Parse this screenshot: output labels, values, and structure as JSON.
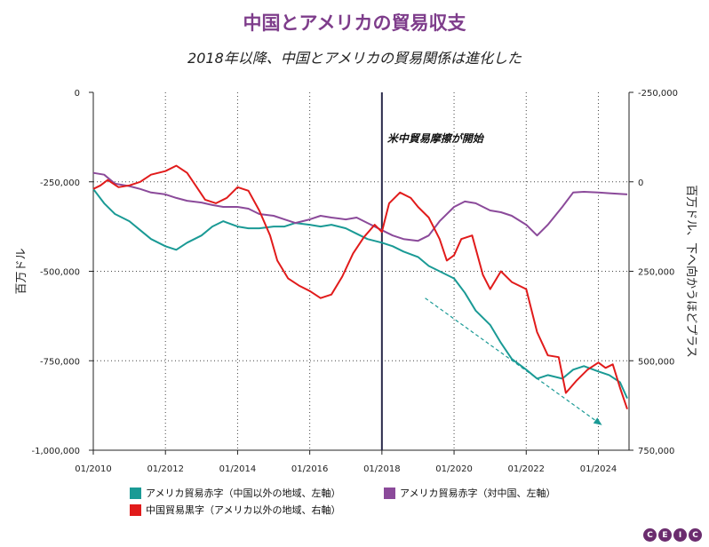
{
  "chart_data": {
    "type": "line",
    "title": "中国とアメリカの貿易収支",
    "subtitle": "2018年以降、中国とアメリカの貿易関係は進化した",
    "left_axis_label": "百万ドル",
    "right_axis_label": "百万ドル、下へ向かうほどプラス",
    "annotation": "米中貿易摩擦が開始",
    "event_date": "2018-01",
    "x_ticks": [
      "01/2010",
      "01/2012",
      "01/2014",
      "01/2016",
      "01/2018",
      "01/2020",
      "01/2022",
      "01/2024"
    ],
    "left_ticks": [
      "0",
      "-250,000",
      "-500,000",
      "-750,000",
      "-1,000,000"
    ],
    "right_ticks": [
      "-250,000",
      "0",
      "250,000",
      "500,000",
      "750,000"
    ],
    "left_range": [
      -1000000,
      0
    ],
    "right_range": [
      -250000,
      750000
    ],
    "right_axis_inverted": true,
    "series": [
      {
        "name": "アメリカ貿易赤字（中国以外の地域、左軸）",
        "color": "#1a9a95",
        "axis": "left",
        "points": [
          [
            2010.0,
            -270000
          ],
          [
            2010.3,
            -310000
          ],
          [
            2010.6,
            -340000
          ],
          [
            2011.0,
            -360000
          ],
          [
            2011.3,
            -385000
          ],
          [
            2011.6,
            -410000
          ],
          [
            2012.0,
            -430000
          ],
          [
            2012.3,
            -440000
          ],
          [
            2012.6,
            -420000
          ],
          [
            2013.0,
            -400000
          ],
          [
            2013.3,
            -375000
          ],
          [
            2013.6,
            -360000
          ],
          [
            2014.0,
            -375000
          ],
          [
            2014.3,
            -380000
          ],
          [
            2014.6,
            -380000
          ],
          [
            2015.0,
            -375000
          ],
          [
            2015.3,
            -375000
          ],
          [
            2015.6,
            -365000
          ],
          [
            2016.0,
            -370000
          ],
          [
            2016.3,
            -375000
          ],
          [
            2016.6,
            -370000
          ],
          [
            2017.0,
            -380000
          ],
          [
            2017.3,
            -395000
          ],
          [
            2017.6,
            -410000
          ],
          [
            2018.0,
            -420000
          ],
          [
            2018.3,
            -430000
          ],
          [
            2018.6,
            -445000
          ],
          [
            2019.0,
            -460000
          ],
          [
            2019.3,
            -485000
          ],
          [
            2019.6,
            -500000
          ],
          [
            2020.0,
            -520000
          ],
          [
            2020.3,
            -560000
          ],
          [
            2020.6,
            -610000
          ],
          [
            2021.0,
            -650000
          ],
          [
            2021.3,
            -700000
          ],
          [
            2021.6,
            -745000
          ],
          [
            2022.0,
            -775000
          ],
          [
            2022.3,
            -800000
          ],
          [
            2022.6,
            -790000
          ],
          [
            2023.0,
            -800000
          ],
          [
            2023.3,
            -775000
          ],
          [
            2023.6,
            -765000
          ],
          [
            2024.0,
            -780000
          ],
          [
            2024.3,
            -790000
          ],
          [
            2024.6,
            -810000
          ],
          [
            2024.8,
            -855000
          ]
        ]
      },
      {
        "name": "アメリカ貿易赤字（対中国、左軸）",
        "color": "#8b4a9a",
        "axis": "left",
        "points": [
          [
            2010.0,
            -225000
          ],
          [
            2010.3,
            -230000
          ],
          [
            2010.6,
            -255000
          ],
          [
            2011.0,
            -262000
          ],
          [
            2011.3,
            -270000
          ],
          [
            2011.6,
            -280000
          ],
          [
            2012.0,
            -285000
          ],
          [
            2012.3,
            -295000
          ],
          [
            2012.6,
            -303000
          ],
          [
            2013.0,
            -308000
          ],
          [
            2013.3,
            -315000
          ],
          [
            2013.6,
            -320000
          ],
          [
            2014.0,
            -320000
          ],
          [
            2014.3,
            -325000
          ],
          [
            2014.6,
            -340000
          ],
          [
            2015.0,
            -345000
          ],
          [
            2015.3,
            -355000
          ],
          [
            2015.6,
            -365000
          ],
          [
            2016.0,
            -355000
          ],
          [
            2016.3,
            -345000
          ],
          [
            2016.6,
            -350000
          ],
          [
            2017.0,
            -355000
          ],
          [
            2017.3,
            -350000
          ],
          [
            2017.6,
            -365000
          ],
          [
            2018.0,
            -385000
          ],
          [
            2018.3,
            -400000
          ],
          [
            2018.6,
            -410000
          ],
          [
            2019.0,
            -415000
          ],
          [
            2019.3,
            -400000
          ],
          [
            2019.6,
            -360000
          ],
          [
            2020.0,
            -320000
          ],
          [
            2020.3,
            -305000
          ],
          [
            2020.6,
            -310000
          ],
          [
            2021.0,
            -330000
          ],
          [
            2021.3,
            -335000
          ],
          [
            2021.6,
            -345000
          ],
          [
            2022.0,
            -370000
          ],
          [
            2022.3,
            -400000
          ],
          [
            2022.6,
            -370000
          ],
          [
            2023.0,
            -320000
          ],
          [
            2023.3,
            -280000
          ],
          [
            2023.6,
            -278000
          ],
          [
            2024.0,
            -280000
          ],
          [
            2024.3,
            -282000
          ],
          [
            2024.8,
            -285000
          ]
        ]
      },
      {
        "name": "中国貿易黒字（アメリカ以外の地域、右軸）",
        "color": "#e11b1b",
        "axis": "right",
        "points": [
          [
            2010.0,
            20000
          ],
          [
            2010.2,
            10000
          ],
          [
            2010.4,
            -5000
          ],
          [
            2010.7,
            15000
          ],
          [
            2011.0,
            10000
          ],
          [
            2011.3,
            0
          ],
          [
            2011.6,
            -20000
          ],
          [
            2012.0,
            -30000
          ],
          [
            2012.3,
            -45000
          ],
          [
            2012.6,
            -25000
          ],
          [
            2012.9,
            20000
          ],
          [
            2013.1,
            50000
          ],
          [
            2013.4,
            60000
          ],
          [
            2013.7,
            45000
          ],
          [
            2014.0,
            15000
          ],
          [
            2014.3,
            25000
          ],
          [
            2014.6,
            80000
          ],
          [
            2014.9,
            150000
          ],
          [
            2015.1,
            220000
          ],
          [
            2015.4,
            270000
          ],
          [
            2015.7,
            290000
          ],
          [
            2016.0,
            305000
          ],
          [
            2016.3,
            325000
          ],
          [
            2016.6,
            315000
          ],
          [
            2016.9,
            265000
          ],
          [
            2017.2,
            200000
          ],
          [
            2017.5,
            155000
          ],
          [
            2017.8,
            120000
          ],
          [
            2018.0,
            140000
          ],
          [
            2018.2,
            60000
          ],
          [
            2018.5,
            30000
          ],
          [
            2018.8,
            45000
          ],
          [
            2019.0,
            70000
          ],
          [
            2019.3,
            100000
          ],
          [
            2019.6,
            160000
          ],
          [
            2019.8,
            220000
          ],
          [
            2020.0,
            205000
          ],
          [
            2020.2,
            160000
          ],
          [
            2020.5,
            150000
          ],
          [
            2020.8,
            260000
          ],
          [
            2021.0,
            300000
          ],
          [
            2021.3,
            250000
          ],
          [
            2021.6,
            280000
          ],
          [
            2022.0,
            300000
          ],
          [
            2022.3,
            420000
          ],
          [
            2022.6,
            485000
          ],
          [
            2022.9,
            490000
          ],
          [
            2023.1,
            590000
          ],
          [
            2023.4,
            555000
          ],
          [
            2023.7,
            525000
          ],
          [
            2024.0,
            505000
          ],
          [
            2024.2,
            520000
          ],
          [
            2024.4,
            510000
          ],
          [
            2024.6,
            575000
          ],
          [
            2024.8,
            635000
          ]
        ]
      }
    ],
    "trend_arrow": {
      "from": [
        2019.2,
        -575000
      ],
      "to": [
        2024.1,
        -930000
      ],
      "color": "#1a9a95"
    }
  },
  "legend": {
    "item1": "アメリカ貿易赤字（中国以外の地域、左軸）",
    "item2": "アメリカ貿易赤字（対中国、左軸）",
    "item3": "中国貿易黒字（アメリカ以外の地域、右軸）"
  },
  "logo_letters": [
    "C",
    "E",
    "I",
    "C"
  ],
  "colors": {
    "title": "#7e3d8b",
    "axis": "#222222",
    "grid": "#444444",
    "event_line": "#2a2a4a"
  }
}
